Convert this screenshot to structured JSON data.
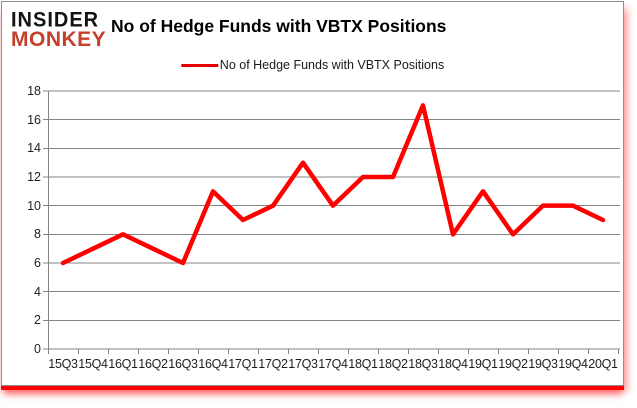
{
  "logo": {
    "line1": "INSIDER",
    "line2": "MONKEY"
  },
  "header": {
    "title": "No of Hedge Funds with VBTX Positions"
  },
  "legend": {
    "label": "No of Hedge Funds with VBTX Positions"
  },
  "colors": {
    "line": "#ff0000",
    "legend_swatch": "#e60000",
    "grid": "#848484",
    "axis_text": "#1f1f1f",
    "logo_red": "#c5402c",
    "card_border": "#8f8f8f",
    "shadow": "#ff0000"
  },
  "chart_data": {
    "type": "line",
    "title": "No of Hedge Funds with VBTX Positions",
    "categories": [
      "15Q3",
      "15Q4",
      "16Q1",
      "16Q2",
      "16Q3",
      "16Q4",
      "17Q1",
      "17Q2",
      "17Q3",
      "17Q4",
      "18Q1",
      "18Q2",
      "18Q3",
      "18Q4",
      "19Q1",
      "19Q2",
      "19Q3",
      "19Q4",
      "20Q1"
    ],
    "series": [
      {
        "name": "No of Hedge Funds with VBTX Positions",
        "color": "#ff0000",
        "values": [
          6,
          7,
          8,
          7,
          6,
          11,
          9,
          10,
          13,
          10,
          12,
          12,
          17,
          8,
          11,
          8,
          10,
          10,
          9
        ]
      }
    ],
    "xlabel": "",
    "ylabel": "",
    "ylim": [
      0,
      18
    ],
    "ytick_step": 2,
    "grid": true,
    "legend_position": "top-center"
  }
}
